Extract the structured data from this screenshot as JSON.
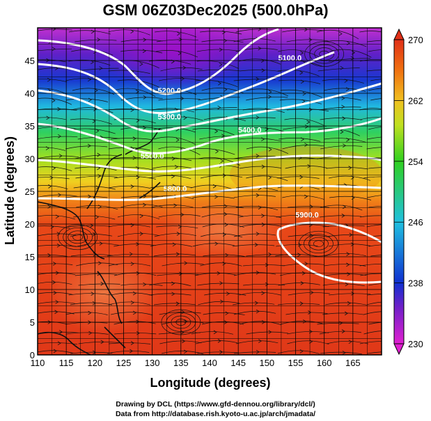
{
  "title": "GSM 06Z03Dec2025 (500.0hPa)",
  "credits": {
    "line1": "Drawing by DCL (https://www.gfd-dennou.org/library/dcl/)",
    "line2": "Data from http://database.rish.kyoto-u.ac.jp/arch/jmadata/"
  },
  "chart_data": {
    "type": "heatmap",
    "title": "GSM 06Z03Dec2025 (500.0hPa)",
    "xlabel": "Longitude (degrees)",
    "ylabel": "Latitude  (degrees)",
    "xlim": [
      110,
      170
    ],
    "ylim": [
      0,
      50
    ],
    "xticks": [
      "110",
      "115",
      "120",
      "125",
      "130",
      "135",
      "140",
      "145",
      "150",
      "155",
      "160",
      "165"
    ],
    "yticks": [
      "0",
      "5",
      "10",
      "15",
      "20",
      "25",
      "30",
      "35",
      "40",
      "45"
    ],
    "grid": true,
    "colorbar": {
      "min": 230,
      "max": 270,
      "labels": [
        "230",
        "238",
        "246",
        "254",
        "262",
        "270"
      ],
      "placement": "right"
    },
    "colors": {
      "cold": "#e020d0",
      "blue": "#1030d0",
      "cyan": "#20c0e0",
      "green": "#30d020",
      "yellow": "#f0e020",
      "orange": "#f07010",
      "red": "#e03018"
    },
    "contours": [
      {
        "label": "5100.0",
        "lon": 154,
        "lat": 45
      },
      {
        "label": "5200.0",
        "lon": 133,
        "lat": 40
      },
      {
        "label": "5300.0",
        "lon": 133,
        "lat": 36
      },
      {
        "label": "5400.0",
        "lon": 147,
        "lat": 34
      },
      {
        "label": "5500.0",
        "lon": 130,
        "lat": 30
      },
      {
        "label": "5800.0",
        "lon": 134,
        "lat": 25
      },
      {
        "label": "5900.0",
        "lon": 157,
        "lat": 21
      }
    ]
  }
}
